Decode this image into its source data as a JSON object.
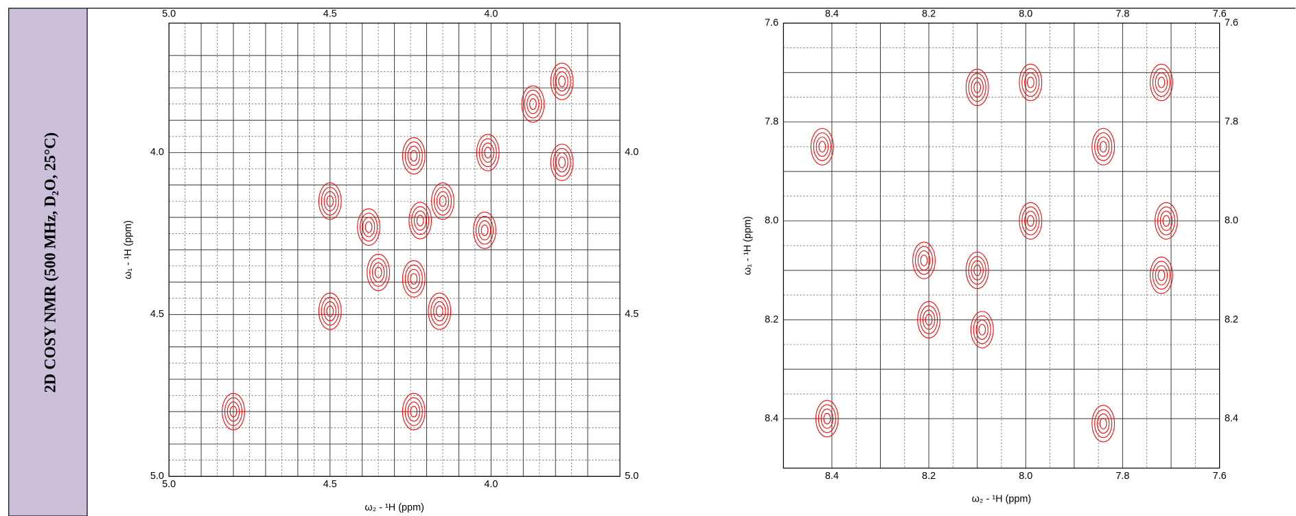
{
  "side_label": "2D COSY NMR (500 MHz, D₂O, 25°C)",
  "chart_data": [
    {
      "type": "contour",
      "color": "#ff0000",
      "x_label": "ω₂ - ¹H  (ppm)",
      "y_label": "ω₁ - ¹H  (ppm)",
      "xlim": [
        5.0,
        3.6
      ],
      "ylim": [
        3.6,
        5.0
      ],
      "xticks": [
        {
          "value": 5,
          "label": "5.0"
        },
        4.5,
        {
          "value": 4,
          "label": "4.0"
        }
      ],
      "yticks": [
        {
          "value": 4,
          "label": "4.0"
        },
        4.5,
        {
          "value": 5,
          "label": "5.0"
        }
      ],
      "minor_xticks": [
        4.9,
        4.8,
        4.7,
        4.6,
        4.4,
        4.3,
        4.2,
        4.1,
        3.9,
        3.8,
        3.7
      ],
      "minor_yticks": [
        3.7,
        3.8,
        3.9,
        4.1,
        4.2,
        4.3,
        4.4,
        4.6,
        4.7,
        4.8,
        4.9
      ],
      "x": [
        4.8,
        3.78,
        3.87,
        4.01,
        4.15,
        4.22,
        4.35,
        4.5,
        4.24,
        4.5,
        4.38,
        4.02,
        4.24,
        4.16,
        3.78,
        4.24
      ],
      "y": [
        4.8,
        3.78,
        3.85,
        4.0,
        4.15,
        4.21,
        4.37,
        4.49,
        4.01,
        4.15,
        4.23,
        4.24,
        4.39,
        4.49,
        4.03,
        4.8
      ]
    },
    {
      "type": "contour",
      "color": "#ff0000",
      "x_label": "ω₂ - ¹H  (ppm)",
      "y_label": "ω₁ - ¹H  (ppm)",
      "xlim": [
        8.5,
        7.6
      ],
      "ylim": [
        7.6,
        8.5
      ],
      "xticks": [
        8.4,
        8.2,
        {
          "value": 8,
          "label": "8.0"
        },
        7.8,
        7.6
      ],
      "yticks": [
        7.6,
        7.8,
        {
          "value": 8,
          "label": "8.0"
        },
        8.2,
        8.4
      ],
      "minor_xticks": [
        8.3,
        8.1,
        7.9,
        7.7
      ],
      "minor_yticks": [
        7.7,
        7.9,
        8.1,
        8.3
      ],
      "x": [
        7.72,
        7.99,
        8.1,
        8.42,
        7.84,
        7.99,
        7.71,
        8.1,
        7.72,
        8.2,
        8.21,
        8.09,
        8.41,
        7.84
      ],
      "y": [
        7.72,
        7.72,
        7.73,
        7.85,
        7.85,
        8.0,
        8.0,
        8.1,
        8.11,
        8.2,
        8.08,
        8.22,
        8.4,
        8.41
      ]
    }
  ]
}
